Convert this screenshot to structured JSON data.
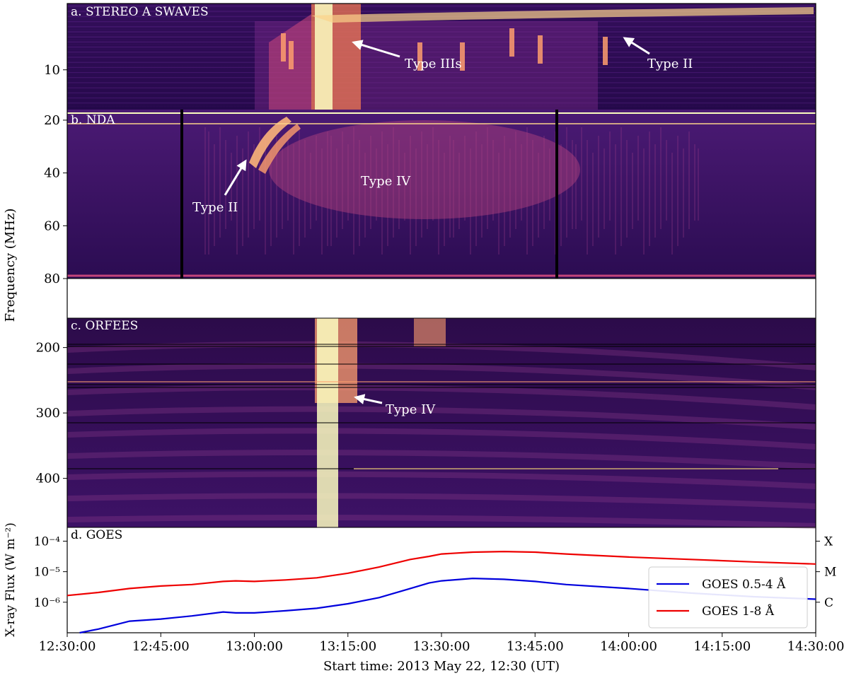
{
  "figure": {
    "ylabel_left": "Frequency (MHz)",
    "xlabel": "Start time: 2013 May 22, 12:30 (UT)",
    "x_ticks": [
      "12:30:00",
      "12:45:00",
      "13:00:00",
      "13:15:00",
      "13:30:00",
      "13:45:00",
      "14:00:00",
      "14:15:00",
      "14:30:00"
    ]
  },
  "chart_data": [
    {
      "type": "heatmap",
      "panel": "a",
      "title": "a. STEREO A SWAVES",
      "x_range_minutes": [
        0,
        120
      ],
      "y_ticks": [
        "10"
      ],
      "y_tick_values": [
        10
      ],
      "y_range": [
        0,
        16
      ],
      "colormap": [
        "#0d0221",
        "#3b0f70",
        "#8c2981",
        "#de4968",
        "#fe9f6d",
        "#fcfdbf"
      ],
      "annotations": [
        {
          "text": "Type IIIs",
          "minute": 24.5,
          "freq": 5
        },
        {
          "text": "Type II",
          "minute": 94,
          "freq": 4.5
        }
      ]
    },
    {
      "type": "heatmap",
      "panel": "b",
      "title": "b. NDA",
      "y_ticks": [
        "20",
        "40",
        "60",
        "80"
      ],
      "y_tick_values": [
        20,
        40,
        60,
        80
      ],
      "y_range": [
        16,
        80
      ],
      "annotations": [
        {
          "text": "Type II",
          "minute": 30.5,
          "freq": 35
        },
        {
          "text": "Type IV",
          "minute": 0,
          "freq": 0
        }
      ]
    },
    {
      "type": "heatmap",
      "panel": "c",
      "title": "c. ORFEES",
      "y_ticks": [
        "200",
        "300",
        "400"
      ],
      "y_tick_values": [
        200,
        300,
        400
      ],
      "y_range": [
        155,
        475
      ],
      "annotations": [
        {
          "text": "Type IV",
          "minute": 49,
          "freq": 265
        }
      ]
    },
    {
      "type": "line",
      "panel": "d",
      "title": "d. GOES",
      "ylabel": "X-ray Flux (W m⁻²)",
      "y_scale": "log",
      "y_range_log10": [
        -7,
        -3.55
      ],
      "y_ticks": [
        "10⁻⁴",
        "10⁻⁵",
        "10⁻⁶"
      ],
      "right_ticks": [
        "X",
        "M",
        "C"
      ],
      "legend_position": "lower-right",
      "series": [
        {
          "name": "GOES 0.5-4 Å",
          "color": "#0000dd",
          "x_minutes": [
            2,
            5,
            10,
            15,
            20,
            25,
            27,
            30,
            35,
            40,
            45,
            50,
            55,
            58,
            60,
            65,
            70,
            75,
            80,
            90,
            100,
            110,
            120
          ],
          "log_flux": [
            -7.0,
            -6.88,
            -6.62,
            -6.55,
            -6.45,
            -6.32,
            -6.35,
            -6.35,
            -6.28,
            -6.2,
            -6.05,
            -5.85,
            -5.55,
            -5.37,
            -5.3,
            -5.22,
            -5.25,
            -5.32,
            -5.42,
            -5.55,
            -5.7,
            -5.82,
            -5.9
          ]
        },
        {
          "name": "GOES 1-8 Å",
          "color": "#ee0000",
          "x_minutes": [
            0,
            5,
            10,
            15,
            20,
            25,
            27,
            30,
            35,
            40,
            45,
            50,
            55,
            58,
            60,
            65,
            70,
            75,
            80,
            90,
            100,
            110,
            120
          ],
          "log_flux": [
            -5.78,
            -5.68,
            -5.55,
            -5.47,
            -5.42,
            -5.32,
            -5.3,
            -5.32,
            -5.27,
            -5.2,
            -5.05,
            -4.85,
            -4.6,
            -4.5,
            -4.42,
            -4.36,
            -4.34,
            -4.36,
            -4.42,
            -4.52,
            -4.6,
            -4.68,
            -4.75
          ]
        }
      ]
    }
  ]
}
